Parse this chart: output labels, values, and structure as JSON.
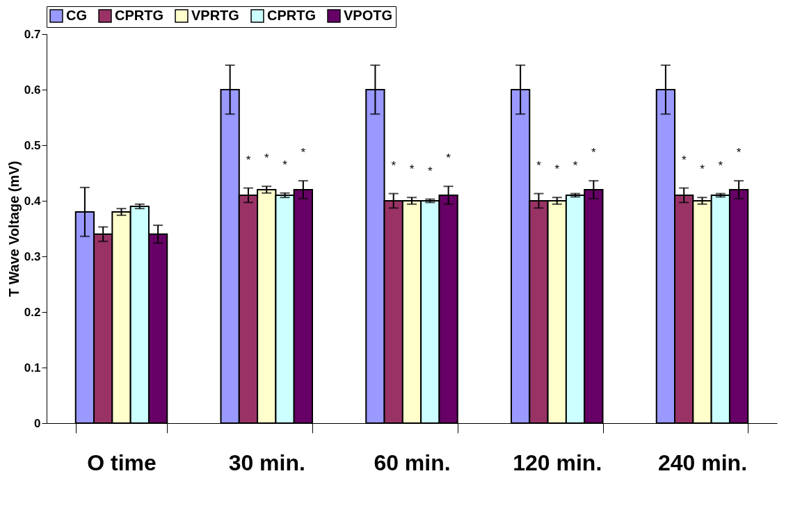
{
  "chart_data": {
    "type": "bar",
    "ylabel": "T Wave Voltage (mV)",
    "categories": [
      "O time",
      "30 min.",
      "60 min.",
      "120 min.",
      "240 min."
    ],
    "series": [
      {
        "name": "CG",
        "color": "#9999ff",
        "values": [
          0.38,
          0.6,
          0.6,
          0.6,
          0.6
        ],
        "errors": [
          0.044,
          0.044,
          0.044,
          0.044,
          0.044
        ]
      },
      {
        "name": "CPRTG",
        "color": "#993366",
        "values": [
          0.34,
          0.41,
          0.4,
          0.4,
          0.41
        ],
        "errors": [
          0.013,
          0.013,
          0.013,
          0.013,
          0.013
        ]
      },
      {
        "name": "VPRTG",
        "color": "#ffffcc",
        "values": [
          0.38,
          0.42,
          0.4,
          0.4,
          0.4
        ],
        "errors": [
          0.006,
          0.006,
          0.006,
          0.006,
          0.006
        ]
      },
      {
        "name": "CPRTG",
        "color": "#ccffff",
        "values": [
          0.39,
          0.41,
          0.4,
          0.41,
          0.41
        ],
        "errors": [
          0.004,
          0.004,
          0.003,
          0.003,
          0.003
        ]
      },
      {
        "name": "VPOTG",
        "color": "#660066",
        "values": [
          0.34,
          0.42,
          0.41,
          0.42,
          0.42
        ],
        "errors": [
          0.016,
          0.016,
          0.016,
          0.016,
          0.016
        ]
      }
    ],
    "ylim": [
      0,
      0.7
    ],
    "yticks": [
      0,
      0.1,
      0.2,
      0.3,
      0.4,
      0.5,
      0.6,
      0.7
    ],
    "grid": false,
    "legend": "top",
    "annotations": [
      "*",
      "*",
      "*",
      "*",
      "*",
      "*",
      "*",
      "*",
      "*",
      "*",
      "*",
      "*",
      "*",
      "*",
      "*",
      "*"
    ]
  }
}
